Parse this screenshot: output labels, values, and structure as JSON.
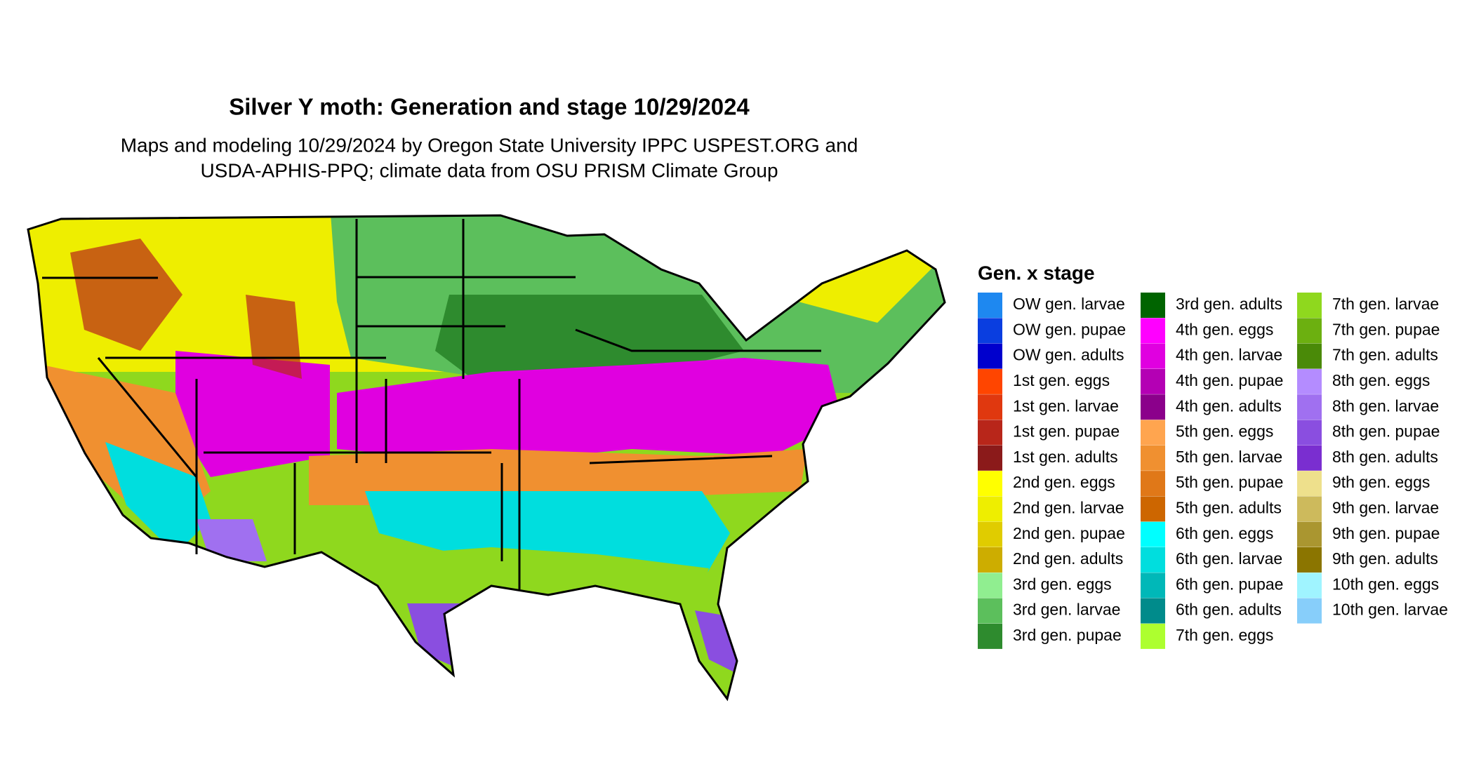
{
  "header": {
    "title": "Silver Y moth: Generation and stage 10/29/2024",
    "subtitle_lines": [
      "Maps and modeling 10/29/2024 by Oregon State University IPPC USPEST.ORG and",
      "USDA-APHIS-PPQ; climate data from OSU PRISM Climate Group"
    ]
  },
  "legend": {
    "title": "Gen. x stage",
    "items": [
      {
        "label": "OW gen. larvae",
        "color": "#1e88f0"
      },
      {
        "label": "OW gen. pupae",
        "color": "#0a3ee0"
      },
      {
        "label": "OW gen. adults",
        "color": "#0000cd"
      },
      {
        "label": "1st gen. eggs",
        "color": "#ff4500"
      },
      {
        "label": "1st gen. larvae",
        "color": "#e0380f"
      },
      {
        "label": "1st gen. pupae",
        "color": "#b8261a"
      },
      {
        "label": "1st gen. adults",
        "color": "#8b1a1a"
      },
      {
        "label": "2nd gen. eggs",
        "color": "#ffff00"
      },
      {
        "label": "2nd gen. larvae",
        "color": "#eeee00"
      },
      {
        "label": "2nd gen. pupae",
        "color": "#e0cc00"
      },
      {
        "label": "2nd gen. adults",
        "color": "#cdad00"
      },
      {
        "label": "3rd gen. eggs",
        "color": "#90ee90"
      },
      {
        "label": "3rd gen. larvae",
        "color": "#5cbf5c"
      },
      {
        "label": "3rd gen. pupae",
        "color": "#2e8b2e"
      },
      {
        "label": "3rd gen. adults",
        "color": "#006400"
      },
      {
        "label": "4th gen. eggs",
        "color": "#ff00ff"
      },
      {
        "label": "4th gen. larvae",
        "color": "#e000e0"
      },
      {
        "label": "4th gen. pupae",
        "color": "#b400b4"
      },
      {
        "label": "4th gen. adults",
        "color": "#8b008b"
      },
      {
        "label": "5th gen. eggs",
        "color": "#ffa54f"
      },
      {
        "label": "5th gen. larvae",
        "color": "#f09030"
      },
      {
        "label": "5th gen. pupae",
        "color": "#e07818"
      },
      {
        "label": "5th gen. adults",
        "color": "#cd6600"
      },
      {
        "label": "6th gen. eggs",
        "color": "#00ffff"
      },
      {
        "label": "6th gen. larvae",
        "color": "#00dede"
      },
      {
        "label": "6th gen. pupae",
        "color": "#00b8b8"
      },
      {
        "label": "6th gen. adults",
        "color": "#008b8b"
      },
      {
        "label": "7th gen. eggs",
        "color": "#adff2f"
      },
      {
        "label": "7th gen. larvae",
        "color": "#8fd81e"
      },
      {
        "label": "7th gen. pupae",
        "color": "#6cb010"
      },
      {
        "label": "7th gen. adults",
        "color": "#4a8a08"
      },
      {
        "label": "8th gen. eggs",
        "color": "#b48cff"
      },
      {
        "label": "8th gen. larvae",
        "color": "#a070f0"
      },
      {
        "label": "8th gen. pupae",
        "color": "#8a4ee0"
      },
      {
        "label": "8th gen. adults",
        "color": "#7a2ed0"
      },
      {
        "label": "9th gen. eggs",
        "color": "#eee08c"
      },
      {
        "label": "9th gen. larvae",
        "color": "#cdba5c"
      },
      {
        "label": "9th gen. pupae",
        "color": "#aa9630"
      },
      {
        "label": "9th gen. adults",
        "color": "#8b7500"
      },
      {
        "label": "10th gen. eggs",
        "color": "#a0f4ff"
      },
      {
        "label": "10th gen. larvae",
        "color": "#87cefa"
      }
    ]
  }
}
